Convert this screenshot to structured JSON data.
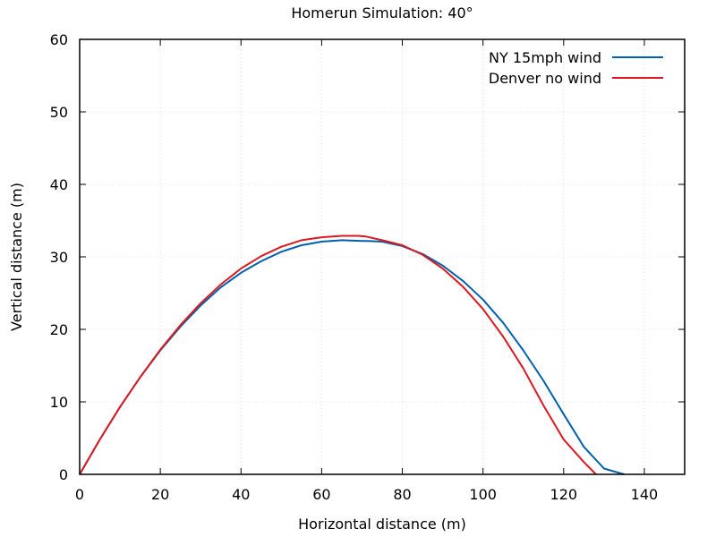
{
  "chart_data": {
    "type": "line",
    "title": "Homerun Simulation: 40°",
    "xlabel": "Horizontal distance (m)",
    "ylabel": "Vertical distance (m)",
    "xlim": [
      0,
      150
    ],
    "ylim": [
      0,
      60
    ],
    "xticks": [
      0,
      20,
      40,
      60,
      80,
      100,
      120,
      140
    ],
    "yticks": [
      0,
      10,
      20,
      30,
      40,
      50,
      60
    ],
    "grid": true,
    "legend_position": "top-right",
    "series": [
      {
        "name": "NY 15mph wind",
        "color": "#0060ad",
        "x": [
          0,
          5,
          10,
          15,
          20,
          25,
          30,
          35,
          40,
          45,
          50,
          55,
          60,
          65,
          70,
          71.5,
          75,
          80,
          85,
          90,
          95,
          100,
          105,
          110,
          115,
          120,
          125,
          130,
          135
        ],
        "y": [
          0,
          4.8,
          9.3,
          13.4,
          17.1,
          20.4,
          23.3,
          25.8,
          27.8,
          29.4,
          30.7,
          31.6,
          32.1,
          32.3,
          32.2,
          32.2,
          32.1,
          31.5,
          30.4,
          28.8,
          26.7,
          24.1,
          20.9,
          17.1,
          12.9,
          8.3,
          3.8,
          0.8,
          0
        ]
      },
      {
        "name": "Denver no wind",
        "color": "#dd181f",
        "x": [
          0,
          5,
          10,
          15,
          20,
          25,
          30,
          35,
          40,
          45,
          50,
          55,
          60,
          65,
          69,
          71,
          75,
          80,
          85,
          90,
          95,
          100,
          105,
          110,
          115,
          120,
          125,
          128
        ],
        "y": [
          0,
          4.8,
          9.3,
          13.4,
          17.2,
          20.6,
          23.6,
          26.2,
          28.4,
          30.1,
          31.4,
          32.3,
          32.7,
          32.9,
          32.9,
          32.8,
          32.3,
          31.6,
          30.3,
          28.4,
          25.9,
          22.8,
          19.0,
          14.6,
          9.5,
          4.8,
          1.7,
          0
        ]
      }
    ]
  }
}
